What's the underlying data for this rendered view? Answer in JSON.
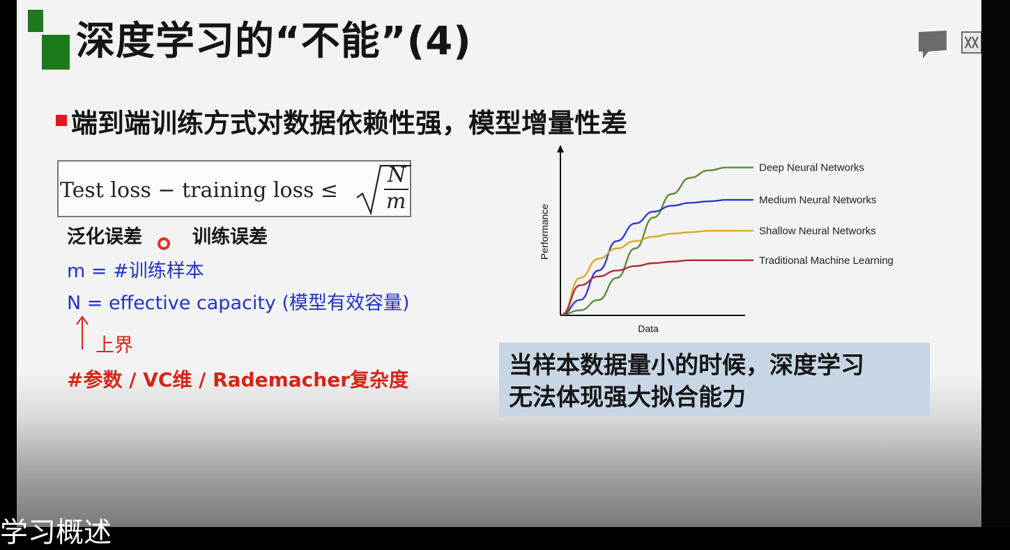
{
  "slide": {
    "title": "深度学习的“不能”(4)",
    "bullet": "端到端训练方式对数据依赖性强，模型增量性差",
    "formula": {
      "lhs": "Test loss − training loss ≤",
      "numerator": "N",
      "denominator": "m"
    },
    "labels": {
      "generalization_error": "泛化误差",
      "training_error": "训练误差"
    },
    "definitions": {
      "m": "m = #训练样本",
      "n": "N = effective capacity (模型有效容量)"
    },
    "upper_bound_label": "上界",
    "complexity_measures": "#参数 / VC维 /  Rademacher复杂度",
    "callout": {
      "line1": "当样本数据量小的时候，深度学习",
      "line2": "无法体现强大拟合能力"
    }
  },
  "chart_data": {
    "type": "line",
    "xlabel": "Data",
    "ylabel": "Performance",
    "x": [
      0,
      0.1,
      0.2,
      0.3,
      0.4,
      0.5,
      0.6,
      0.7,
      0.8,
      0.9,
      1.0
    ],
    "series": [
      {
        "name": "Deep Neural Networks",
        "color": "#5a8a3a",
        "values": [
          0,
          0.03,
          0.1,
          0.25,
          0.45,
          0.66,
          0.82,
          0.93,
          0.98,
          1.0,
          1.0
        ]
      },
      {
        "name": "Medium Neural Networks",
        "color": "#2b3ccc",
        "values": [
          0,
          0.1,
          0.3,
          0.5,
          0.62,
          0.7,
          0.74,
          0.76,
          0.77,
          0.78,
          0.78
        ]
      },
      {
        "name": "Shallow Neural Networks",
        "color": "#d8a825",
        "values": [
          0,
          0.25,
          0.38,
          0.45,
          0.5,
          0.53,
          0.55,
          0.56,
          0.57,
          0.57,
          0.57
        ]
      },
      {
        "name": "Traditional Machine Learning",
        "color": "#a83030",
        "values": [
          0,
          0.2,
          0.26,
          0.3,
          0.33,
          0.35,
          0.36,
          0.37,
          0.37,
          0.37,
          0.37
        ]
      }
    ],
    "ylim": [
      0,
      1.05
    ],
    "grid": false,
    "legend": "right"
  },
  "caption": "学习概述",
  "icons": [
    "slide-logo-icon",
    "bullet-square-icon",
    "up-arrow-icon",
    "comment-icon"
  ]
}
